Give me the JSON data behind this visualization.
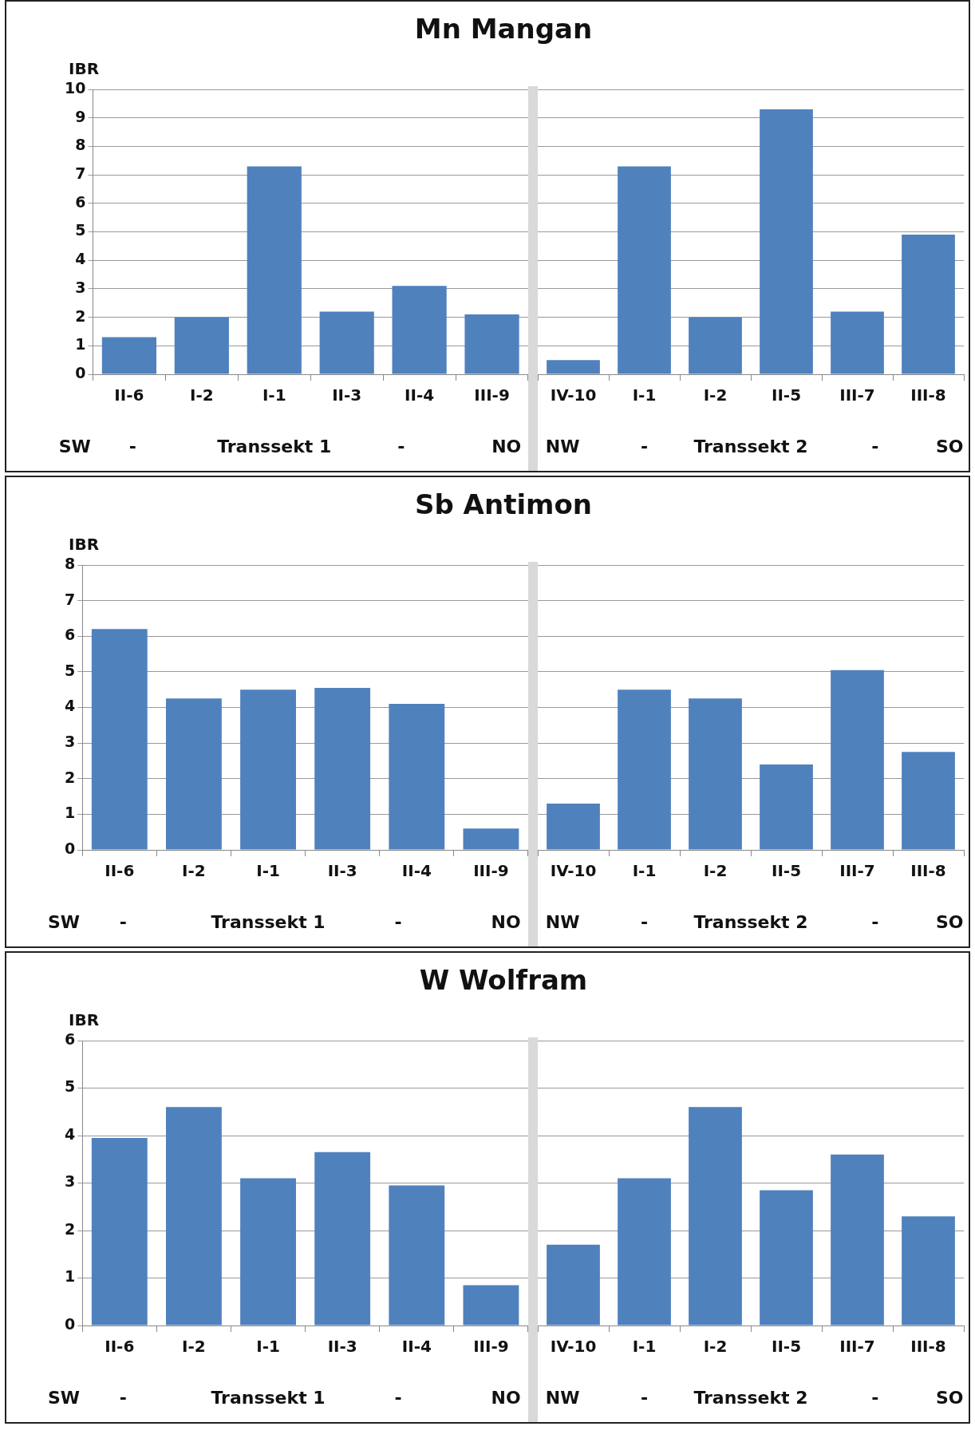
{
  "chart_data": [
    {
      "type": "bar",
      "title": "Mn Mangan",
      "ylabel": "IBR",
      "categories": [
        "II-6",
        "I-2",
        "I-1",
        "II-3",
        "II-4",
        "III-9"
      ],
      "values": [
        1.3,
        2.0,
        7.3,
        2.2,
        3.1,
        2.1
      ],
      "color": "#4f81bd",
      "ylim": [
        0,
        10
      ],
      "yticks": [
        0,
        1,
        2,
        3,
        4,
        5,
        6,
        7,
        8,
        9,
        10
      ],
      "grid": "y",
      "annotations": [
        "SW",
        "-",
        "Transsekt 1",
        "-",
        "NO"
      ]
    },
    {
      "type": "bar",
      "categories": [
        "IV-10",
        "I-1",
        "I-2",
        "II-5",
        "III-7",
        "III-8"
      ],
      "values": [
        0.5,
        7.3,
        2.0,
        9.3,
        2.2,
        4.9
      ],
      "color": "#4f81bd",
      "ylim": [
        0,
        10
      ],
      "yticks": [
        0,
        1,
        2,
        3,
        4,
        5,
        6,
        7,
        8,
        9,
        10
      ],
      "grid": "y",
      "tick_labels": "x",
      "annotations": [
        "NW",
        "-",
        "Transsekt 2",
        "-",
        "SO"
      ]
    },
    {
      "type": "bar",
      "title": "Sb Antimon",
      "ylabel": "IBR",
      "categories": [
        "II-6",
        "I-2",
        "I-1",
        "II-3",
        "II-4",
        "III-9"
      ],
      "values": [
        6.2,
        4.25,
        4.5,
        4.55,
        4.1,
        0.6
      ],
      "color": "#4f81bd",
      "ylim": [
        0,
        8
      ],
      "yticks": [
        0,
        1,
        2,
        3,
        4,
        5,
        6,
        7,
        8
      ],
      "grid": "y",
      "annotations": [
        "SW",
        "-",
        "Transsekt 1",
        "-",
        "NO"
      ]
    },
    {
      "type": "bar",
      "categories": [
        "IV-10",
        "I-1",
        "I-2",
        "II-5",
        "III-7",
        "III-8"
      ],
      "values": [
        1.3,
        4.5,
        4.25,
        2.4,
        5.05,
        2.75
      ],
      "color": "#4f81bd",
      "ylim": [
        0,
        8
      ],
      "yticks": [
        0,
        1,
        2,
        3,
        4,
        5,
        6,
        7,
        8
      ],
      "grid": "y",
      "tick_labels": "x",
      "annotations": [
        "NW",
        "-",
        "Transsekt 2",
        "-",
        "SO"
      ]
    },
    {
      "type": "bar",
      "title": "W Wolfram",
      "ylabel": "IBR",
      "categories": [
        "II-6",
        "I-2",
        "I-1",
        "II-3",
        "II-4",
        "III-9"
      ],
      "values": [
        3.95,
        4.6,
        3.1,
        3.65,
        2.95,
        0.85
      ],
      "color": "#4f81bd",
      "ylim": [
        0,
        6
      ],
      "yticks": [
        0,
        1,
        2,
        3,
        4,
        5,
        6
      ],
      "grid": "y",
      "annotations": [
        "SW",
        "-",
        "Transsekt 1",
        "-",
        "NO"
      ]
    },
    {
      "type": "bar",
      "categories": [
        "IV-10",
        "I-1",
        "I-2",
        "II-5",
        "III-7",
        "III-8"
      ],
      "values": [
        1.7,
        3.1,
        4.6,
        2.85,
        3.6,
        2.3
      ],
      "color": "#4f81bd",
      "ylim": [
        0,
        6
      ],
      "yticks": [
        0,
        1,
        2,
        3,
        4,
        5,
        6
      ],
      "grid": "y",
      "tick_labels": "x",
      "annotations": [
        "NW",
        "-",
        "Transsekt 2",
        "-",
        "SO"
      ]
    }
  ]
}
